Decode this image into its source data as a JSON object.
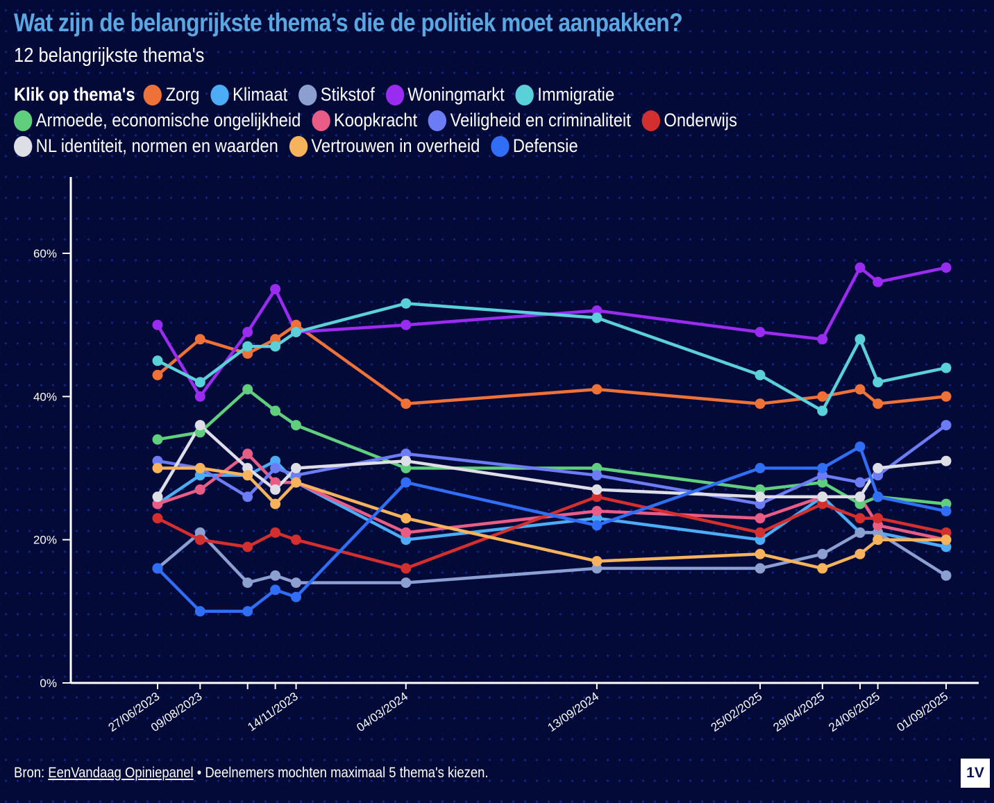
{
  "header": {
    "title": "Wat zijn de belangrijkste thema’s die de politiek moet aanpakken?",
    "subtitle": "12 belangrijkste thema's"
  },
  "legend": {
    "heading": "Klik op thema's"
  },
  "footer": {
    "source_prefix": "Bron: ",
    "source_link": "EenVandaag Opiniepanel",
    "note": " • Deelnemers mochten maximaal 5 thema's kiezen.",
    "logo": "1V"
  },
  "colors": {
    "background": "#030a38",
    "title": "#5ba7e2",
    "axis": "#ffffff"
  },
  "chart_data": {
    "type": "line",
    "title": "Wat zijn de belangrijkste thema’s die de politiek moet aanpakken?",
    "subtitle": "12 belangrijkste thema's",
    "xlabel": "",
    "ylabel": "",
    "ylim": [
      0,
      70
    ],
    "yticks": [
      0,
      20,
      40,
      60
    ],
    "ytick_labels": [
      "0%",
      "20%",
      "40%",
      "60%"
    ],
    "grid": false,
    "legend_position": "top",
    "x_dates": [
      "2023-06-27",
      "2023-08-09",
      "2023-09-26",
      "2023-10-24",
      "2023-11-14",
      "2024-03-04",
      "2024-09-13",
      "2025-02-25",
      "2025-04-29",
      "2025-06-06",
      "2025-06-24",
      "2025-09-01"
    ],
    "x_labels": [
      "27/06/2023",
      "09/08/2023",
      "",
      "",
      "14/11/2023",
      "04/03/2024",
      "13/09/2024",
      "25/02/2025",
      "29/04/2025",
      "",
      "24/06/2025",
      "01/09/2025"
    ],
    "series": [
      {
        "name": "Zorg",
        "color": "#ee7238",
        "values": [
          43,
          48,
          46,
          48,
          50,
          39,
          41,
          39,
          40,
          41,
          39,
          40
        ]
      },
      {
        "name": "Klimaat",
        "color": "#4cacf5",
        "values": [
          25,
          29,
          29,
          31,
          28,
          20,
          23,
          20,
          26,
          21,
          21,
          19
        ]
      },
      {
        "name": "Stikstof",
        "color": "#8b9fd1",
        "values": [
          16,
          21,
          14,
          15,
          14,
          14,
          16,
          16,
          18,
          21,
          21,
          15
        ]
      },
      {
        "name": "Woningmarkt",
        "color": "#9a2bf0",
        "values": [
          50,
          40,
          49,
          55,
          49,
          50,
          52,
          49,
          48,
          58,
          56,
          58
        ]
      },
      {
        "name": "Immigratie",
        "color": "#5ad0d8",
        "values": [
          45,
          42,
          47,
          47,
          49,
          53,
          51,
          43,
          38,
          48,
          42,
          44
        ]
      },
      {
        "name": "Armoede, economische ongelijkheid",
        "color": "#5fcf7e",
        "values": [
          34,
          35,
          41,
          38,
          36,
          30,
          30,
          27,
          28,
          25,
          26,
          25
        ]
      },
      {
        "name": "Koopkracht",
        "color": "#e95c86",
        "values": [
          25,
          27,
          32,
          28,
          28,
          21,
          24,
          23,
          26,
          26,
          22,
          20
        ]
      },
      {
        "name": "Veiligheid en criminaliteit",
        "color": "#6b7cf5",
        "values": [
          31,
          30,
          26,
          30,
          29,
          32,
          29,
          25,
          29,
          28,
          29,
          36
        ]
      },
      {
        "name": "Onderwijs",
        "color": "#d42f2f",
        "values": [
          23,
          20,
          19,
          21,
          20,
          16,
          26,
          21,
          25,
          23,
          23,
          21
        ]
      },
      {
        "name": "NL identiteit, normen en waarden",
        "color": "#dedfe6",
        "values": [
          26,
          36,
          30,
          27,
          30,
          31,
          27,
          26,
          26,
          26,
          30,
          31
        ]
      },
      {
        "name": "Vertrouwen in overheid",
        "color": "#f7b35b",
        "values": [
          30,
          30,
          29,
          25,
          28,
          23,
          17,
          18,
          16,
          18,
          20,
          20
        ]
      },
      {
        "name": "Defensie",
        "color": "#2f6ef5",
        "values": [
          16,
          10,
          10,
          13,
          12,
          28,
          22,
          30,
          30,
          33,
          26,
          24
        ]
      }
    ]
  }
}
